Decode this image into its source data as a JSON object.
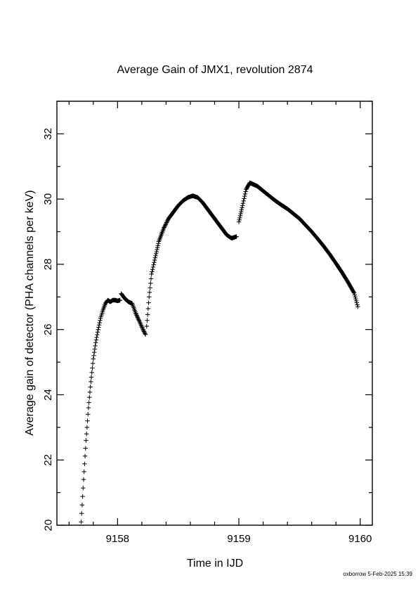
{
  "footer": {
    "stamp": "oxborrow  5-Feb-2025 15:39"
  },
  "chart_data": {
    "type": "scatter",
    "title": "Average Gain of JMX1, revolution 2874",
    "xlabel": "Time in IJD",
    "ylabel": "Average gain of detector (PHA channels per keV)",
    "xlim": [
      9157.5,
      9160.1
    ],
    "ylim": [
      20,
      33
    ],
    "xticks": [
      9158,
      9159,
      9160
    ],
    "xtick_labels": [
      "9158",
      "9159",
      "9160"
    ],
    "yticks": [
      20,
      22,
      24,
      26,
      28,
      30,
      32
    ],
    "ytick_labels": [
      "20",
      "22",
      "24",
      "26",
      "28",
      "30",
      "32"
    ],
    "marker": "plus",
    "grid": false,
    "segments": [
      {
        "x": [
          9157.7,
          9157.72,
          9157.74,
          9157.76,
          9157.78,
          9157.8,
          9157.82,
          9157.84,
          9157.86,
          9157.88,
          9157.9,
          9157.92,
          9157.94,
          9157.96,
          9157.98,
          9158.0,
          9158.02
        ],
        "y": [
          20.1,
          21.4,
          22.6,
          23.6,
          24.4,
          25.1,
          25.6,
          26.0,
          26.35,
          26.6,
          26.8,
          26.9,
          26.85,
          26.9,
          26.9,
          26.88,
          26.9
        ]
      },
      {
        "x": [
          9158.03,
          9158.06,
          9158.09,
          9158.12,
          9158.15,
          9158.18,
          9158.21,
          9158.23
        ],
        "y": [
          27.1,
          26.95,
          26.85,
          26.8,
          26.5,
          26.25,
          26.0,
          25.85
        ]
      },
      {
        "x": [
          9158.24,
          9158.26,
          9158.28,
          9158.31,
          9158.34,
          9158.38,
          9158.42,
          9158.46,
          9158.5,
          9158.54,
          9158.58,
          9158.62,
          9158.66,
          9158.7,
          9158.74,
          9158.78,
          9158.82,
          9158.86,
          9158.9,
          9158.94,
          9158.98
        ],
        "y": [
          26.1,
          27.0,
          27.7,
          28.2,
          28.7,
          29.1,
          29.4,
          29.6,
          29.8,
          29.95,
          30.05,
          30.1,
          30.05,
          29.9,
          29.7,
          29.5,
          29.3,
          29.1,
          28.9,
          28.8,
          28.85
        ]
      },
      {
        "x": [
          9159.0,
          9159.03,
          9159.06,
          9159.09,
          9159.12,
          9159.15,
          9159.2,
          9159.25,
          9159.3,
          9159.35,
          9159.4,
          9159.45,
          9159.5,
          9159.55,
          9159.6,
          9159.65,
          9159.7,
          9159.75,
          9159.8,
          9159.85,
          9159.9,
          9159.95,
          9159.98
        ],
        "y": [
          29.3,
          29.8,
          30.3,
          30.5,
          30.45,
          30.4,
          30.25,
          30.1,
          29.95,
          29.82,
          29.7,
          29.55,
          29.4,
          29.2,
          29.0,
          28.78,
          28.55,
          28.3,
          28.03,
          27.75,
          27.45,
          27.12,
          26.7
        ]
      }
    ]
  }
}
